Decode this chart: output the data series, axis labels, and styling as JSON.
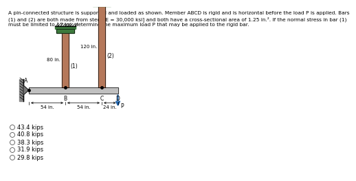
{
  "title_text": "A pin-connected structure is supported and loaded as shown. Member ABCD is rigid and is horizontal before the load P is applied. Bars\n(1) and (2) are both made from steel [E = 30,000 ksi] and both have a cross-sectional area of 1.25 in.². If the normal stress in bar (1)\nmust be limited to 17 ksi, determine the maximum load P that may be applied to the rigid bar.",
  "choices": [
    "43.4 kips",
    "40.8 kips",
    "38.3 kips",
    "31.9 kips",
    "29.8 kips"
  ],
  "bg_color": "#ffffff",
  "bar_color": "#b5785a",
  "support_color": "#3d7a3d",
  "rigid_bar_color": "#c0c0c0",
  "arrow_color": "#1a5fa8",
  "label_fontsize": 5.5,
  "choice_fontsize": 6.0,
  "title_fontsize": 5.3,
  "dim_fontsize": 5.0
}
